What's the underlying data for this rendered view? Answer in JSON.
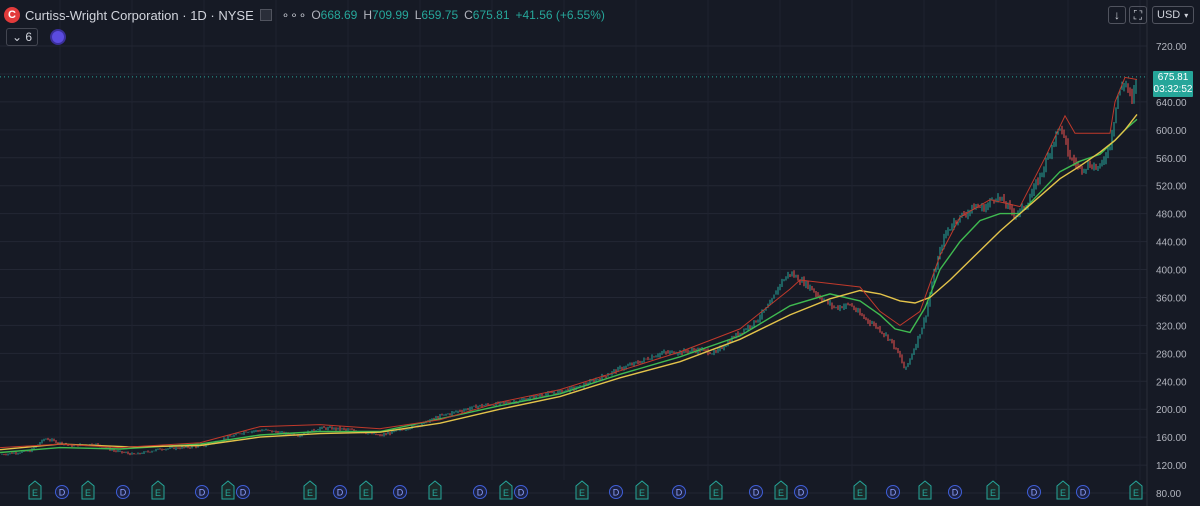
{
  "header": {
    "logo_letter": "C",
    "symbol": "Curtiss-Wright Corporation · 1D · NYSE",
    "more": "∘∘∘",
    "ohlc": [
      {
        "key": "O",
        "value": "668.69"
      },
      {
        "key": "H",
        "value": "709.99"
      },
      {
        "key": "L",
        "value": "659.75"
      },
      {
        "key": "C",
        "value": "675.81"
      }
    ],
    "change": "+41.56 (+6.55%)"
  },
  "indicators": {
    "count": "6",
    "chevron": "⌄"
  },
  "toolbar": {
    "download_icon": "↓",
    "fullscreen_icon": "⛶",
    "currency": "USD",
    "currency_chevron": "▾"
  },
  "price_label": {
    "price": "675.81",
    "countdown": "03:32:52"
  },
  "colors": {
    "background": "#161a25",
    "up": "#26a69a",
    "down": "#ef5350",
    "ma_fast": "#3fb950",
    "ma_slow": "#e3c34a",
    "trail": "#c0392b",
    "events_earnings": "#26a69a",
    "events_dividend": "#3f5fd8"
  },
  "chart_data": {
    "type": "line",
    "title": "",
    "xlabel": "",
    "ylabel": "",
    "ylim": [
      80,
      730
    ],
    "yticks": [
      "720.00",
      "680.00",
      "640.00",
      "600.00",
      "560.00",
      "520.00",
      "480.00",
      "440.00",
      "400.00",
      "360.00",
      "320.00",
      "280.00",
      "240.00",
      "200.00",
      "160.00",
      "120.00",
      "80.00"
    ],
    "grid": true,
    "last_price": 675.81,
    "series": [
      {
        "style": "price",
        "points": [
          [
            0,
            135
          ],
          [
            30,
            140
          ],
          [
            45,
            158
          ],
          [
            70,
            148
          ],
          [
            95,
            150
          ],
          [
            115,
            140
          ],
          [
            135,
            135
          ],
          [
            160,
            143
          ],
          [
            185,
            145
          ],
          [
            205,
            148
          ],
          [
            225,
            158
          ],
          [
            245,
            168
          ],
          [
            265,
            170
          ],
          [
            285,
            165
          ],
          [
            300,
            163
          ],
          [
            320,
            173
          ],
          [
            340,
            172
          ],
          [
            360,
            168
          ],
          [
            380,
            162
          ],
          [
            400,
            170
          ],
          [
            420,
            178
          ],
          [
            440,
            190
          ],
          [
            460,
            198
          ],
          [
            480,
            205
          ],
          [
            500,
            208
          ],
          [
            520,
            212
          ],
          [
            540,
            220
          ],
          [
            560,
            225
          ],
          [
            580,
            232
          ],
          [
            600,
            245
          ],
          [
            620,
            258
          ],
          [
            640,
            268
          ],
          [
            660,
            280
          ],
          [
            680,
            282
          ],
          [
            700,
            285
          ],
          [
            715,
            280
          ],
          [
            735,
            305
          ],
          [
            755,
            325
          ],
          [
            770,
            350
          ],
          [
            780,
            380
          ],
          [
            790,
            395
          ],
          [
            800,
            385
          ],
          [
            810,
            375
          ],
          [
            820,
            360
          ],
          [
            835,
            345
          ],
          [
            850,
            350
          ],
          [
            860,
            335
          ],
          [
            875,
            320
          ],
          [
            890,
            300
          ],
          [
            900,
            275
          ],
          [
            905,
            255
          ],
          [
            915,
            290
          ],
          [
            925,
            330
          ],
          [
            935,
            400
          ],
          [
            945,
            450
          ],
          [
            955,
            470
          ],
          [
            965,
            480
          ],
          [
            975,
            490
          ],
          [
            985,
            488
          ],
          [
            995,
            505
          ],
          [
            1005,
            495
          ],
          [
            1015,
            478
          ],
          [
            1025,
            490
          ],
          [
            1035,
            518
          ],
          [
            1045,
            550
          ],
          [
            1055,
            590
          ],
          [
            1060,
            605
          ],
          [
            1070,
            560
          ],
          [
            1080,
            545
          ],
          [
            1090,
            550
          ],
          [
            1100,
            545
          ],
          [
            1110,
            580
          ],
          [
            1118,
            650
          ],
          [
            1125,
            670
          ],
          [
            1132,
            640
          ],
          [
            1137,
            675.81
          ]
        ]
      },
      {
        "style": "ma_fast",
        "points": [
          [
            0,
            138
          ],
          [
            60,
            145
          ],
          [
            120,
            143
          ],
          [
            200,
            150
          ],
          [
            260,
            163
          ],
          [
            320,
            168
          ],
          [
            380,
            168
          ],
          [
            430,
            183
          ],
          [
            500,
            205
          ],
          [
            560,
            222
          ],
          [
            620,
            250
          ],
          [
            680,
            275
          ],
          [
            740,
            305
          ],
          [
            790,
            348
          ],
          [
            830,
            365
          ],
          [
            860,
            355
          ],
          [
            880,
            335
          ],
          [
            895,
            315
          ],
          [
            910,
            310
          ],
          [
            925,
            345
          ],
          [
            940,
            400
          ],
          [
            960,
            440
          ],
          [
            980,
            470
          ],
          [
            1000,
            480
          ],
          [
            1020,
            480
          ],
          [
            1040,
            510
          ],
          [
            1060,
            540
          ],
          [
            1080,
            555
          ],
          [
            1100,
            565
          ],
          [
            1115,
            585
          ],
          [
            1125,
            600
          ],
          [
            1137,
            615
          ]
        ]
      },
      {
        "style": "ma_slow",
        "points": [
          [
            0,
            142
          ],
          [
            60,
            150
          ],
          [
            130,
            146
          ],
          [
            200,
            148
          ],
          [
            260,
            160
          ],
          [
            320,
            165
          ],
          [
            380,
            167
          ],
          [
            440,
            180
          ],
          [
            500,
            200
          ],
          [
            560,
            218
          ],
          [
            620,
            245
          ],
          [
            680,
            268
          ],
          [
            740,
            300
          ],
          [
            790,
            335
          ],
          [
            830,
            358
          ],
          [
            860,
            370
          ],
          [
            880,
            365
          ],
          [
            900,
            355
          ],
          [
            915,
            352
          ],
          [
            930,
            360
          ],
          [
            950,
            385
          ],
          [
            975,
            420
          ],
          [
            1000,
            455
          ],
          [
            1020,
            480
          ],
          [
            1040,
            505
          ],
          [
            1060,
            530
          ],
          [
            1080,
            548
          ],
          [
            1100,
            568
          ],
          [
            1115,
            585
          ],
          [
            1125,
            600
          ],
          [
            1137,
            622
          ]
        ]
      },
      {
        "style": "trail",
        "points": [
          [
            0,
            145
          ],
          [
            60,
            150
          ],
          [
            120,
            145
          ],
          [
            200,
            152
          ],
          [
            260,
            175
          ],
          [
            320,
            178
          ],
          [
            380,
            172
          ],
          [
            440,
            185
          ],
          [
            500,
            210
          ],
          [
            560,
            228
          ],
          [
            620,
            255
          ],
          [
            680,
            282
          ],
          [
            740,
            315
          ],
          [
            790,
            372
          ],
          [
            800,
            385
          ],
          [
            830,
            380
          ],
          [
            860,
            375
          ],
          [
            880,
            340
          ],
          [
            900,
            320
          ],
          [
            920,
            340
          ],
          [
            940,
            420
          ],
          [
            960,
            475
          ],
          [
            990,
            500
          ],
          [
            1020,
            490
          ],
          [
            1045,
            560
          ],
          [
            1065,
            620
          ],
          [
            1075,
            595
          ],
          [
            1110,
            595
          ],
          [
            1115,
            640
          ],
          [
            1125,
            675
          ],
          [
            1137,
            672
          ]
        ]
      }
    ],
    "events": [
      {
        "type": "E",
        "x": 35
      },
      {
        "type": "D",
        "x": 62
      },
      {
        "type": "E",
        "x": 88
      },
      {
        "type": "D",
        "x": 123
      },
      {
        "type": "E",
        "x": 158
      },
      {
        "type": "D",
        "x": 202
      },
      {
        "type": "E",
        "x": 228
      },
      {
        "type": "D",
        "x": 243
      },
      {
        "type": "E",
        "x": 310
      },
      {
        "type": "D",
        "x": 340
      },
      {
        "type": "E",
        "x": 366
      },
      {
        "type": "D",
        "x": 400
      },
      {
        "type": "E",
        "x": 435
      },
      {
        "type": "D",
        "x": 480
      },
      {
        "type": "E",
        "x": 506
      },
      {
        "type": "D",
        "x": 521
      },
      {
        "type": "E",
        "x": 582
      },
      {
        "type": "D",
        "x": 616
      },
      {
        "type": "E",
        "x": 642
      },
      {
        "type": "D",
        "x": 679
      },
      {
        "type": "E",
        "x": 716
      },
      {
        "type": "D",
        "x": 756
      },
      {
        "type": "E",
        "x": 781
      },
      {
        "type": "D",
        "x": 801
      },
      {
        "type": "E",
        "x": 860
      },
      {
        "type": "D",
        "x": 893
      },
      {
        "type": "E",
        "x": 925
      },
      {
        "type": "D",
        "x": 955
      },
      {
        "type": "E",
        "x": 993
      },
      {
        "type": "D",
        "x": 1034
      },
      {
        "type": "E",
        "x": 1063
      },
      {
        "type": "D",
        "x": 1083
      },
      {
        "type": "E",
        "x": 1136
      }
    ]
  }
}
